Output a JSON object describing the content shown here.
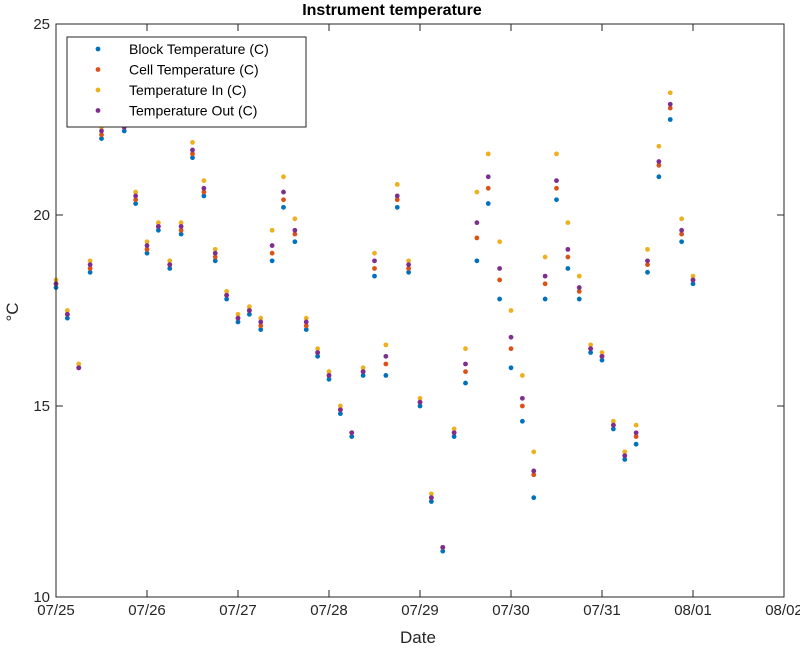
{
  "chart_data": {
    "type": "scatter",
    "title": "Instrument temperature",
    "xlabel": "Date",
    "ylabel": "°C",
    "x_axis": {
      "min": "07/25",
      "max": "08/02",
      "ticks": [
        "07/25",
        "07/26",
        "07/27",
        "07/28",
        "07/29",
        "07/30",
        "07/31",
        "08/01",
        "08/02"
      ]
    },
    "y_axis": {
      "min": 10,
      "max": 25,
      "ticks": [
        10,
        15,
        20,
        25
      ]
    },
    "grid": false,
    "legend_position": "top-left",
    "x": [
      "07/25 00:00",
      "07/25 03:00",
      "07/25 06:00",
      "07/25 09:00",
      "07/25 12:00",
      "07/25 15:00",
      "07/25 18:00",
      "07/25 21:00",
      "07/26 00:00",
      "07/26 03:00",
      "07/26 06:00",
      "07/26 09:00",
      "07/26 12:00",
      "07/26 15:00",
      "07/26 18:00",
      "07/26 21:00",
      "07/27 00:00",
      "07/27 03:00",
      "07/27 06:00",
      "07/27 09:00",
      "07/27 12:00",
      "07/27 15:00",
      "07/27 18:00",
      "07/27 21:00",
      "07/28 00:00",
      "07/28 03:00",
      "07/28 06:00",
      "07/28 09:00",
      "07/28 12:00",
      "07/28 15:00",
      "07/28 18:00",
      "07/28 21:00",
      "07/29 00:00",
      "07/29 03:00",
      "07/29 06:00",
      "07/29 09:00",
      "07/29 12:00",
      "07/29 15:00",
      "07/29 18:00",
      "07/29 21:00",
      "07/30 00:00",
      "07/30 03:00",
      "07/30 06:00",
      "07/30 09:00",
      "07/30 12:00",
      "07/30 15:00",
      "07/30 18:00",
      "07/30 21:00",
      "07/31 00:00",
      "07/31 03:00",
      "07/31 06:00",
      "07/31 09:00",
      "07/31 12:00",
      "07/31 15:00",
      "07/31 18:00",
      "07/31 21:00",
      "08/01 00:00"
    ],
    "series": [
      {
        "name": "Block Temperature (C)",
        "color": "#0072BD",
        "values": [
          18.1,
          17.3,
          16.0,
          18.5,
          22.0,
          22.4,
          22.2,
          20.3,
          19.0,
          19.6,
          18.6,
          19.5,
          21.5,
          20.5,
          18.8,
          17.8,
          17.2,
          17.4,
          17.0,
          18.8,
          20.2,
          19.3,
          17.0,
          16.3,
          15.7,
          14.8,
          14.2,
          15.8,
          18.4,
          15.8,
          20.2,
          18.5,
          15.0,
          12.5,
          11.2,
          14.2,
          15.6,
          18.8,
          20.3,
          17.8,
          16.0,
          14.6,
          12.6,
          17.8,
          20.4,
          18.6,
          17.8,
          16.4,
          16.2,
          14.4,
          13.6,
          14.0,
          18.5,
          21.0,
          22.5,
          19.3,
          18.2
        ]
      },
      {
        "name": "Cell Temperature (C)",
        "color": "#D95319",
        "values": [
          18.2,
          17.4,
          16.0,
          18.6,
          22.1,
          22.5,
          22.3,
          20.4,
          19.1,
          19.7,
          18.7,
          19.6,
          21.6,
          20.6,
          18.9,
          17.9,
          17.3,
          17.5,
          17.1,
          19.0,
          20.4,
          19.5,
          17.1,
          16.4,
          15.8,
          14.9,
          14.3,
          15.9,
          18.6,
          16.1,
          20.4,
          18.6,
          15.1,
          12.6,
          11.3,
          14.3,
          15.9,
          19.4,
          20.7,
          18.3,
          16.5,
          15.0,
          13.2,
          18.2,
          20.7,
          18.9,
          18.0,
          16.5,
          16.3,
          14.5,
          13.7,
          14.2,
          18.7,
          21.3,
          22.8,
          19.5,
          18.3
        ]
      },
      {
        "name": "Temperature In (C)",
        "color": "#EDB120",
        "values": [
          18.3,
          17.5,
          16.1,
          18.8,
          22.3,
          22.6,
          22.4,
          20.6,
          19.3,
          19.8,
          18.8,
          19.8,
          21.9,
          20.9,
          19.1,
          18.0,
          17.4,
          17.6,
          17.3,
          19.6,
          21.0,
          19.9,
          17.3,
          16.5,
          15.9,
          15.0,
          14.3,
          16.0,
          19.0,
          16.6,
          20.8,
          18.8,
          15.2,
          12.7,
          11.3,
          14.4,
          16.5,
          20.6,
          21.6,
          19.3,
          17.5,
          15.8,
          13.8,
          18.9,
          21.6,
          19.8,
          18.4,
          16.6,
          16.4,
          14.6,
          13.8,
          14.5,
          19.1,
          21.8,
          23.2,
          19.9,
          18.4
        ]
      },
      {
        "name": "Temperature Out (C)",
        "color": "#7E2F8E",
        "values": [
          18.2,
          17.4,
          16.0,
          18.7,
          22.2,
          22.5,
          22.3,
          20.5,
          19.2,
          19.7,
          18.7,
          19.7,
          21.7,
          20.7,
          19.0,
          17.9,
          17.3,
          17.5,
          17.2,
          19.2,
          20.6,
          19.6,
          17.2,
          16.4,
          15.8,
          14.9,
          14.3,
          15.9,
          18.8,
          16.3,
          20.5,
          18.7,
          15.1,
          12.6,
          11.3,
          14.3,
          16.1,
          19.8,
          21.0,
          18.6,
          16.8,
          15.2,
          13.3,
          18.4,
          20.9,
          19.1,
          18.1,
          16.5,
          16.3,
          14.5,
          13.7,
          14.3,
          18.8,
          21.4,
          22.9,
          19.6,
          18.3
        ]
      }
    ]
  }
}
